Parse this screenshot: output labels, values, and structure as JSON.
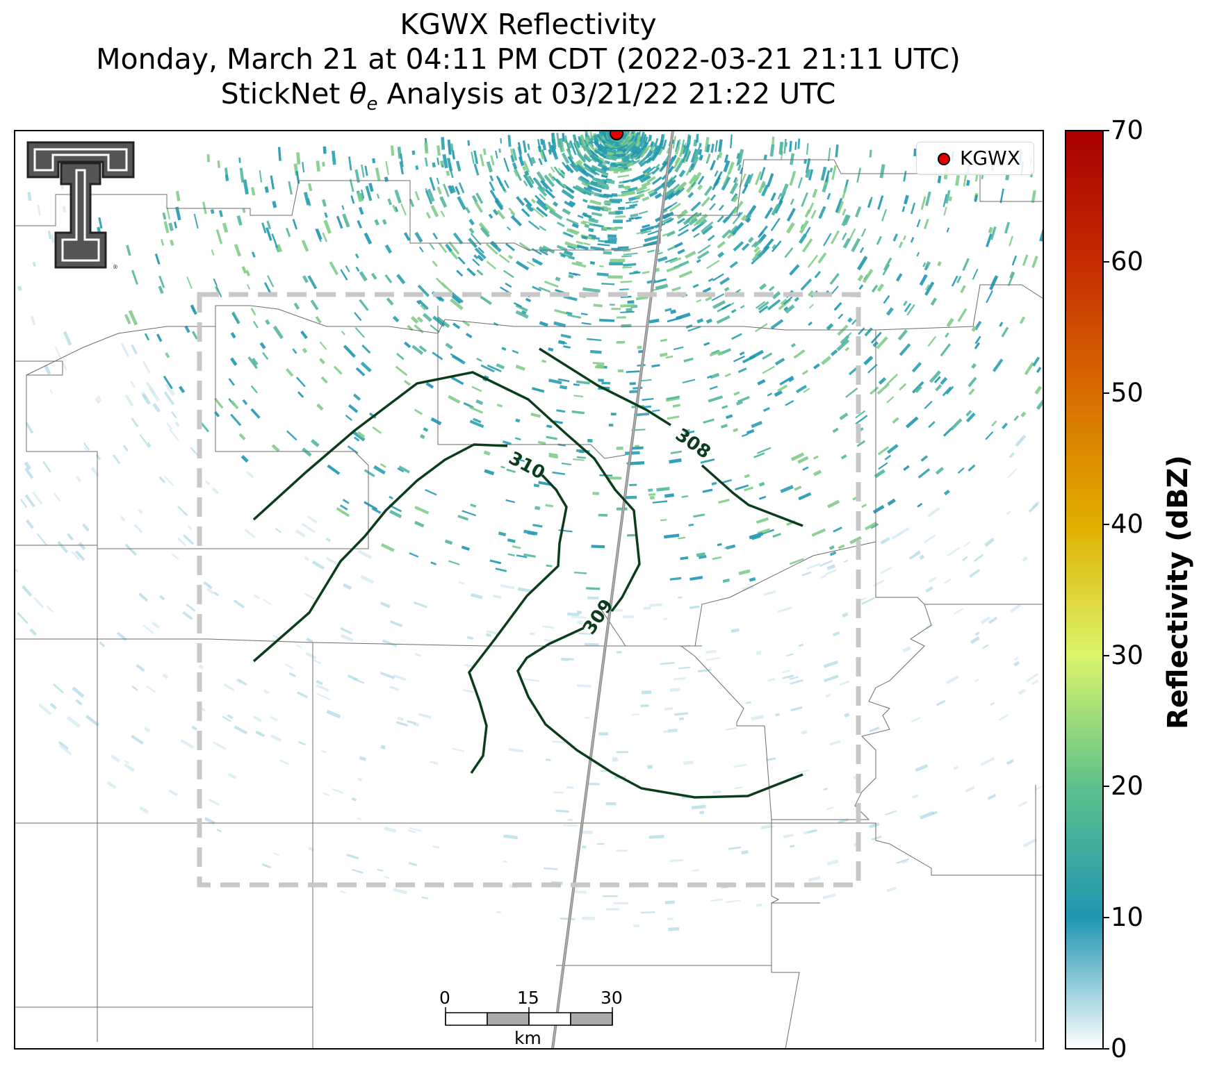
{
  "title": {
    "line1": "KGWX Reflectivity",
    "line2": "Monday, March 21 at 04:11 PM CDT (2022-03-21 21:11 UTC)",
    "line3_prefix": "StickNet ",
    "line3_theta": "θ",
    "line3_sub": "e",
    "line3_suffix": " Analysis at 03/21/22 21:22 UTC"
  },
  "legend": {
    "label": "KGWX",
    "marker_color": "#e00000"
  },
  "colorbar": {
    "label": "Reflectivity (dBZ)",
    "ticks": [
      "0",
      "10",
      "20",
      "30",
      "40",
      "50",
      "60",
      "70"
    ],
    "colors": [
      "#ffffff",
      "#1f96b2",
      "#5dc18b",
      "#dcf56a",
      "#e0b000",
      "#d86a00",
      "#c52a00",
      "#a80000"
    ]
  },
  "contours": {
    "color": "#0a3d1c",
    "labels": [
      "310",
      "308",
      "309"
    ]
  },
  "scale_bar": {
    "ticks": [
      "0",
      "15",
      "30"
    ],
    "unit": "km"
  },
  "logo": {
    "text": "TT"
  }
}
